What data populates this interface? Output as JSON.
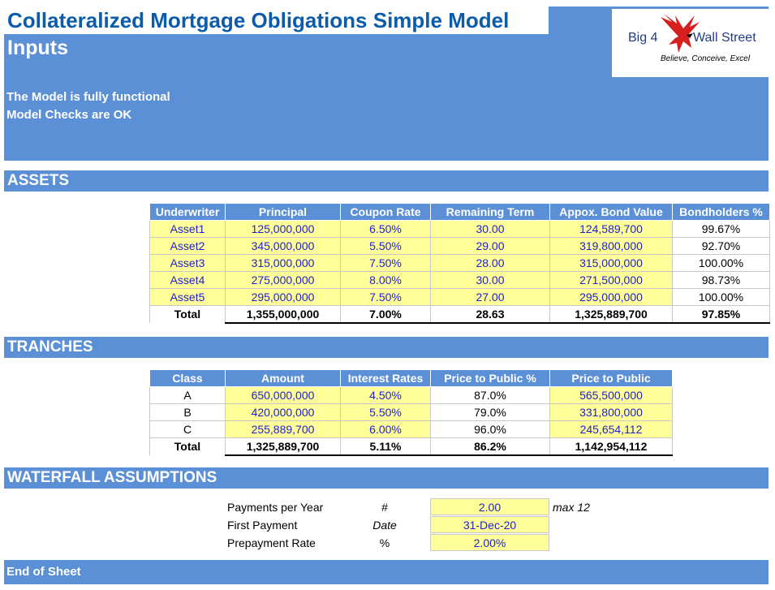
{
  "title": "Collateralized Mortgage Obligations Simple Model",
  "inputs_heading": "Inputs",
  "status": [
    "The Model is fully functional",
    "Model Checks are OK"
  ],
  "logo": {
    "brand_left": "Big 4",
    "brand_right": "Wall Street",
    "tagline": "Believe, Conceive, Excel"
  },
  "sections": {
    "assets": "ASSETS",
    "tranches": "TRANCHES",
    "waterfall": "WATERFALL ASSUMPTIONS",
    "end": "End of Sheet"
  },
  "assets": {
    "headers": [
      "Underwriter",
      "Principal",
      "Coupon Rate",
      "Remaining Term",
      "Appox. Bond Value",
      "Bondholders %"
    ],
    "rows": [
      [
        "Asset1",
        "125,000,000",
        "6.50%",
        "30.00",
        "124,589,700",
        "99.67%"
      ],
      [
        "Asset2",
        "345,000,000",
        "5.50%",
        "29.00",
        "319,800,000",
        "92.70%"
      ],
      [
        "Asset3",
        "315,000,000",
        "7.50%",
        "28.00",
        "315,000,000",
        "100.00%"
      ],
      [
        "Asset4",
        "275,000,000",
        "8.00%",
        "30.00",
        "271,500,000",
        "98.73%"
      ],
      [
        "Asset5",
        "295,000,000",
        "7.50%",
        "27.00",
        "295,000,000",
        "100.00%"
      ]
    ],
    "total": [
      "Total",
      "1,355,000,000",
      "7.00%",
      "28.63",
      "1,325,889,700",
      "97.85%"
    ]
  },
  "tranches": {
    "headers": [
      "Class",
      "Amount",
      "Interest Rates",
      "Price to Public %",
      "Price to Public"
    ],
    "rows": [
      [
        "A",
        "650,000,000",
        "4.50%",
        "87.0%",
        "565,500,000"
      ],
      [
        "B",
        "420,000,000",
        "5.50%",
        "79.0%",
        "331,800,000"
      ],
      [
        "C",
        "255,889,700",
        "6.00%",
        "96.0%",
        "245,654,112"
      ]
    ],
    "total": [
      "Total",
      "1,325,889,700",
      "5.11%",
      "86.2%",
      "1,142,954,112"
    ]
  },
  "waterfall": [
    {
      "label": "Payments per Year",
      "unit": "#",
      "value": "2.00",
      "note": "max 12"
    },
    {
      "label": "First Payment",
      "unit": "Date",
      "value": "31-Dec-20",
      "note": ""
    },
    {
      "label": "Prepayment Rate",
      "unit": "%",
      "value": "2.00%",
      "note": ""
    }
  ]
}
